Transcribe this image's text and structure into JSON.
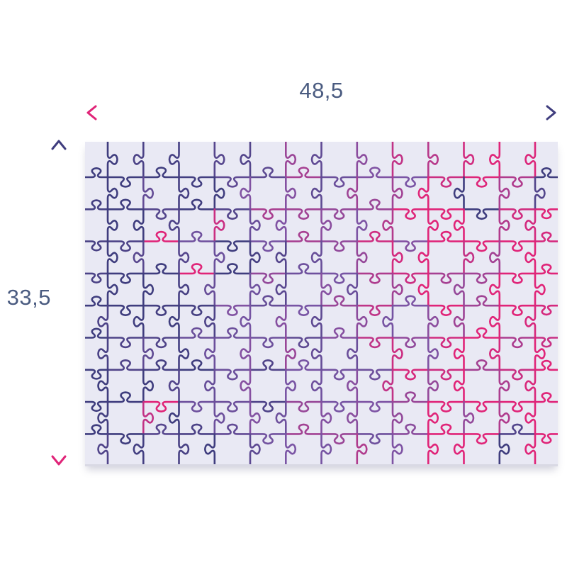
{
  "dimensions": {
    "width_label": "48,5",
    "height_label": "33,5"
  },
  "puzzle": {
    "columns": 14,
    "rows": 10
  },
  "colors": {
    "page_bg": "#ffffff",
    "label_text": "#4a5b80",
    "navy": "#3f3d7e",
    "violet": "#7a55a5",
    "magenta": "#e02478",
    "puzzle_bg": "#e9e9f4",
    "puzzle_edge": "#d9d9e4"
  }
}
